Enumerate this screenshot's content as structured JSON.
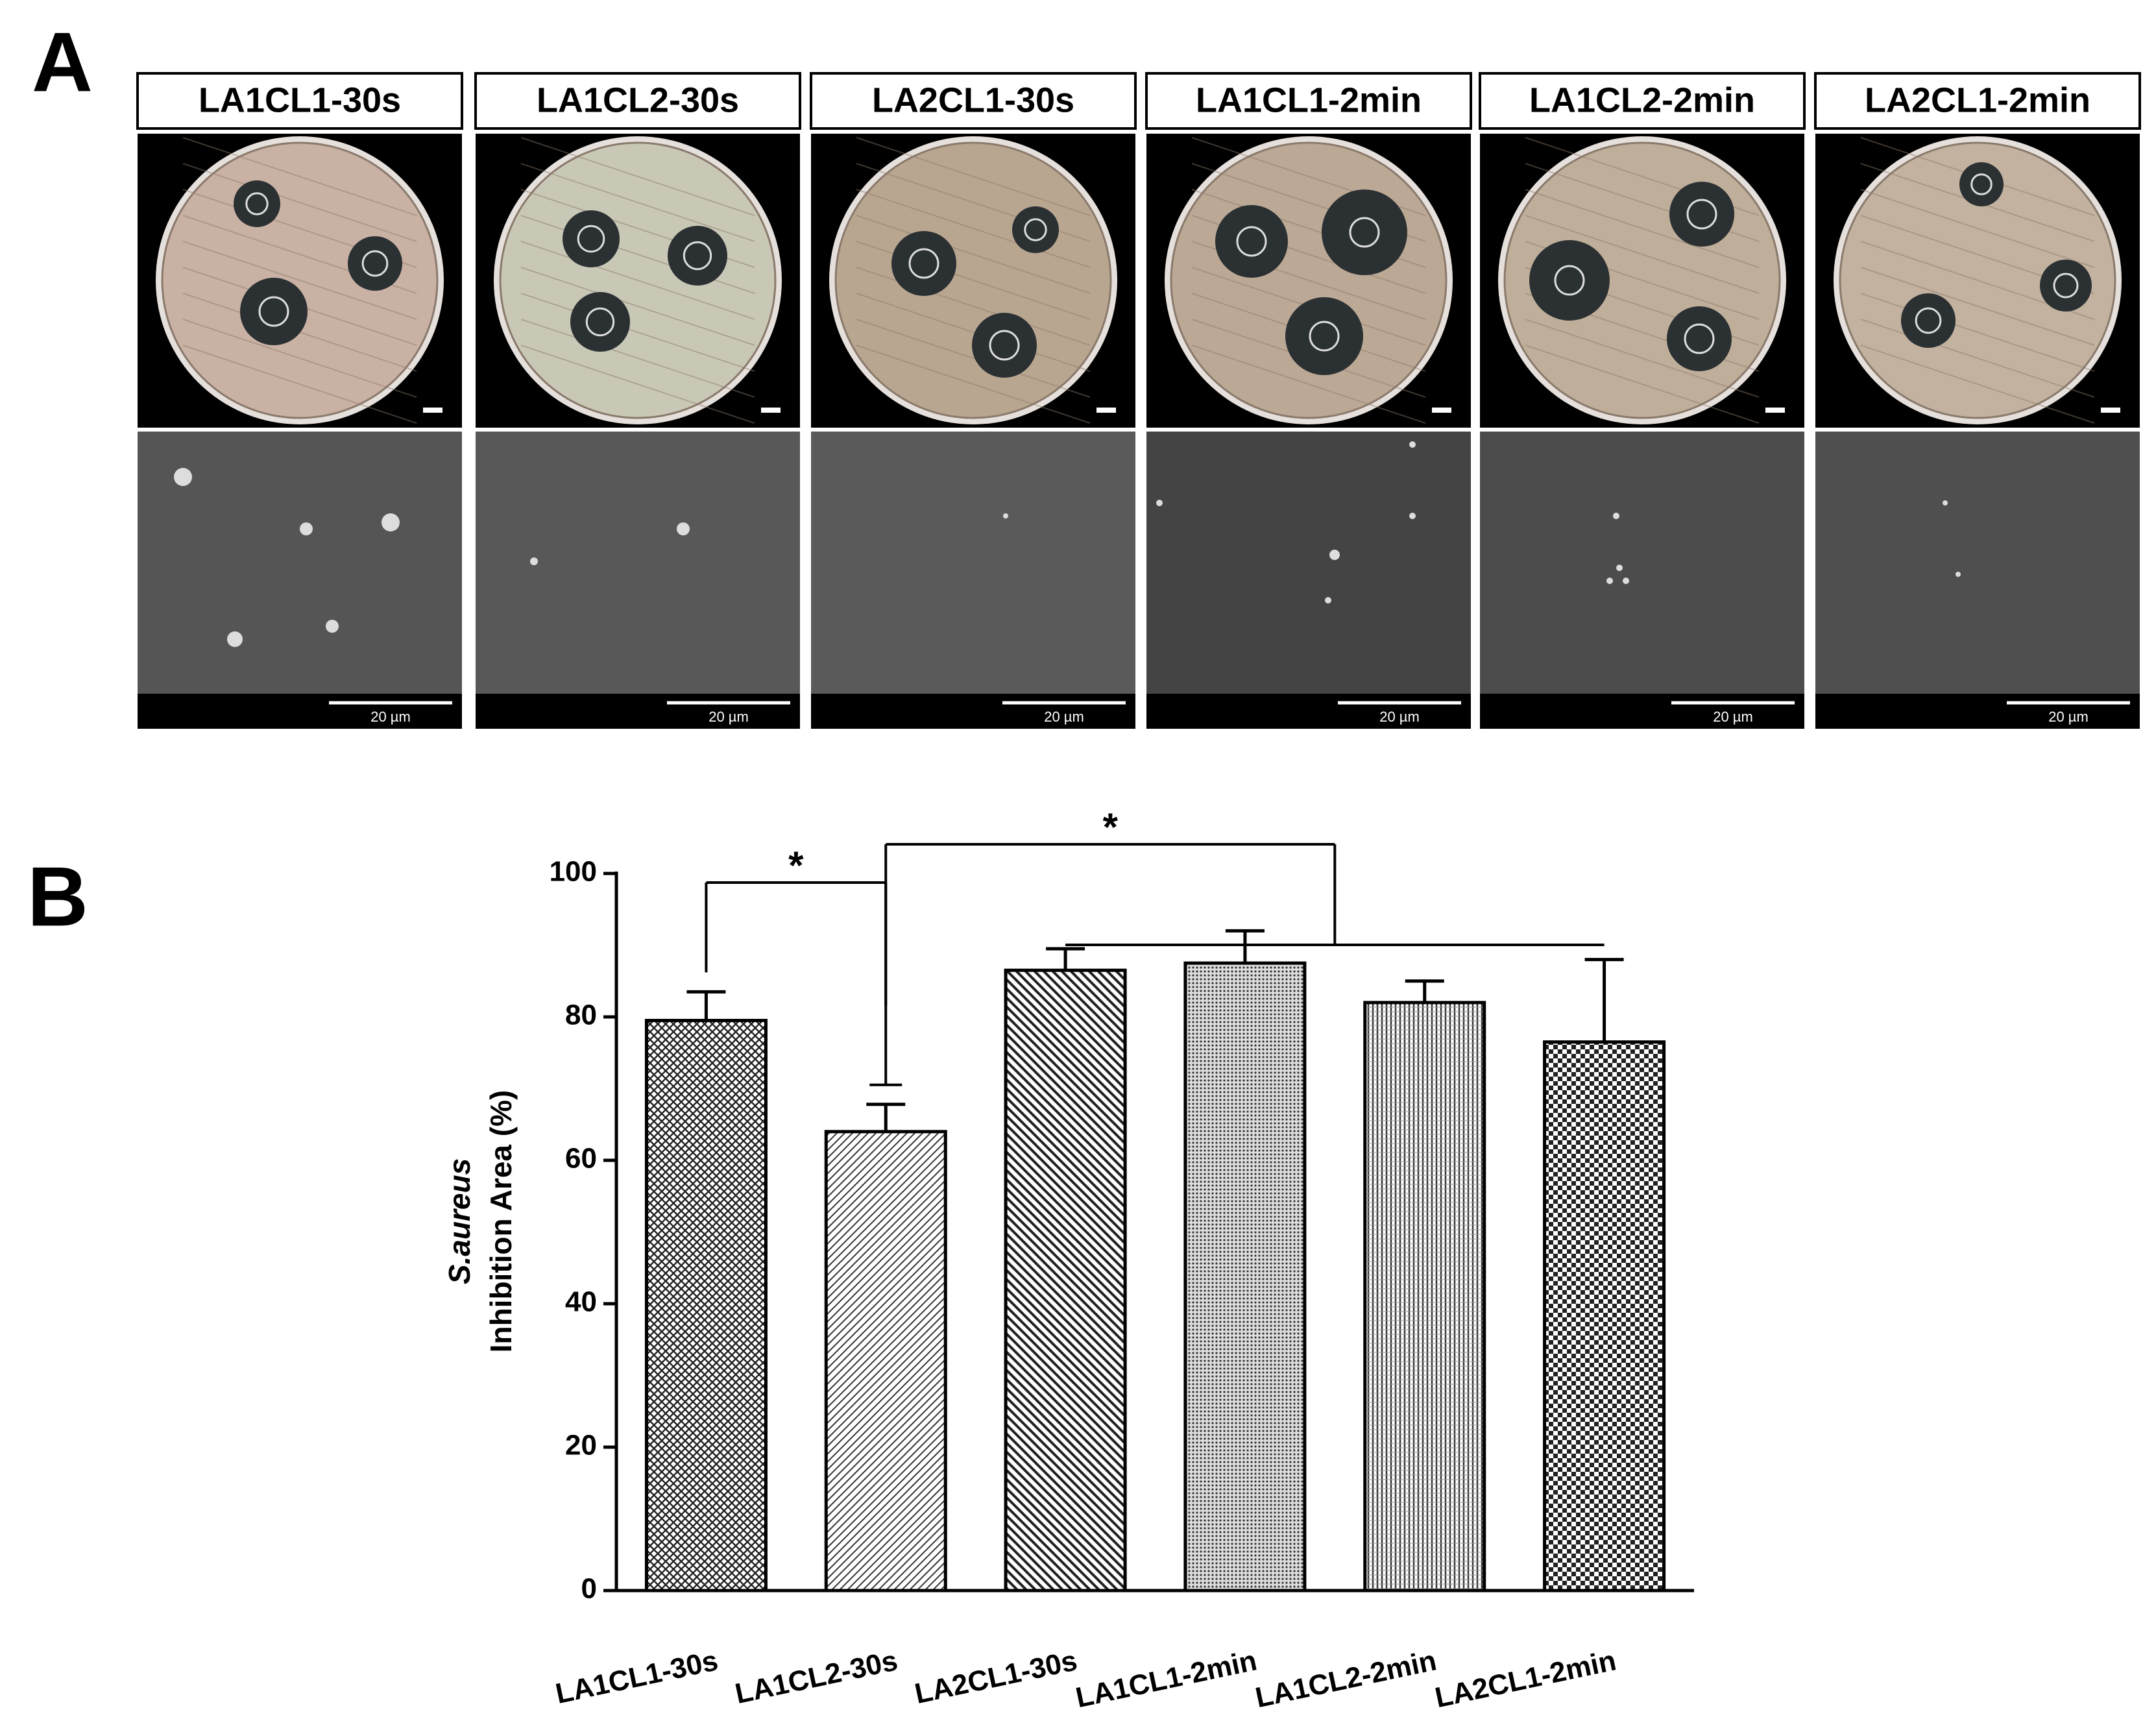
{
  "panels": {
    "a": "A",
    "b": "B"
  },
  "photo_labels": [
    "LA1CL1-30s",
    "LA1CL2-30s",
    "LA2CL1-30s",
    "LA1CL1-2min",
    "LA1CL2-2min",
    "LA2CL1-2min"
  ],
  "scale_bar_label": "20 µm",
  "chart_data": {
    "type": "bar",
    "categories": [
      "LA1CL1-30s",
      "LA1CL2-30s",
      "LA2CL1-30s",
      "LA1CL1-2min",
      "LA1CL2-2min",
      "LA2CL1-2min"
    ],
    "values": [
      79.5,
      64,
      86.5,
      87.5,
      82,
      76.5
    ],
    "errors": [
      4,
      3.8,
      3,
      4.5,
      3,
      11.5
    ],
    "ylabel": [
      "S.aureus",
      "Inhibition Area (%)"
    ],
    "ylim": [
      0,
      100
    ],
    "yticks": [
      0,
      20,
      40,
      60,
      80,
      100
    ],
    "annotations": [
      "*",
      "*"
    ]
  }
}
